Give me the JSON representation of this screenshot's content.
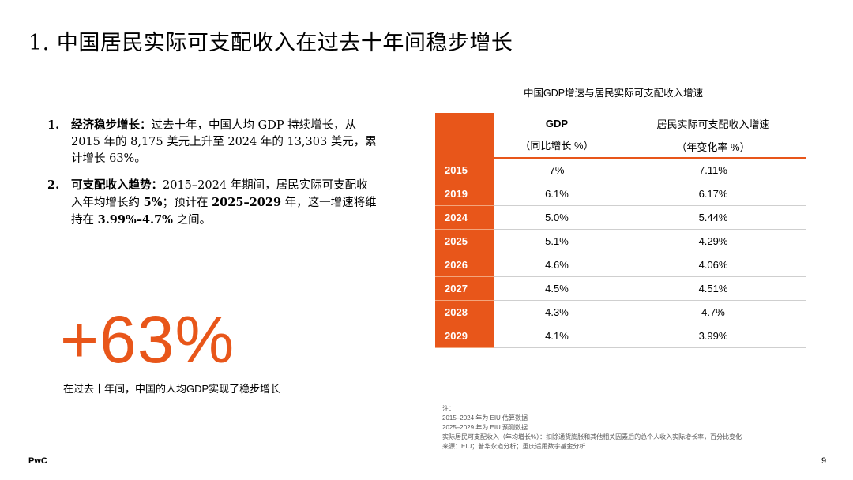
{
  "title": "1. 中国居民实际可支配收入在过去十年间稳步增长",
  "bullets": [
    {
      "num": "1.",
      "label": "经济稳步增长：",
      "text": "过去十年，中国人均 GDP 持续增长，从 2015 年的 8,175 美元上升至 2024 年的 13,303 美元，累计增长 63%。"
    },
    {
      "num": "2.",
      "label": "可支配收入趋势：",
      "text_pre": "2015–2024 年期间，居民实际可支配收入年均增长约 ",
      "bold1": "5%",
      "text_mid": "；预计在 ",
      "bold2": "2025–2029",
      "text_mid2": " 年，这一增速将维持在 ",
      "bold3": "3.99%–4.7%",
      "text_post": " 之间。"
    }
  ],
  "highlight": {
    "value": "+63%",
    "caption": "在过去十年间，中国的人均GDP实现了稳步增长"
  },
  "table": {
    "title": "中国GDP增速与居民实际可支配收入增速",
    "col_gdp": "GDP",
    "col_gdp_sub": "（同比增长 %）",
    "col_income": "居民实际可支配收入增速",
    "col_income_sub": "（年变化率 %）",
    "rows": [
      {
        "year": "2015",
        "gdp": "7%",
        "income": "7.11%"
      },
      {
        "year": "2019",
        "gdp": "6.1%",
        "income": "6.17%"
      },
      {
        "year": "2024",
        "gdp": "5.0%",
        "income": "5.44%"
      },
      {
        "year": "2025",
        "gdp": "5.1%",
        "income": "4.29%"
      },
      {
        "year": "2026",
        "gdp": "4.6%",
        "income": "4.06%"
      },
      {
        "year": "2027",
        "gdp": "4.5%",
        "income": "4.51%"
      },
      {
        "year": "2028",
        "gdp": "4.3%",
        "income": "4.7%"
      },
      {
        "year": "2029",
        "gdp": "4.1%",
        "income": "3.99%"
      }
    ]
  },
  "notes": [
    "注：",
    "2015–2024 年为 EIU 估算数据",
    "2025–2029 年为 EIU 预测数据",
    "实际居民可支配收入（年均增长%）：扣除通货膨胀和其他相关因素后的总个人收入实际增长率，百分比变化",
    "来源：EIU；普华永道分析；重庆适用数字基金分析"
  ],
  "footer": {
    "brand": "PwC",
    "page": "9"
  },
  "colors": {
    "accent": "#e8561a"
  }
}
